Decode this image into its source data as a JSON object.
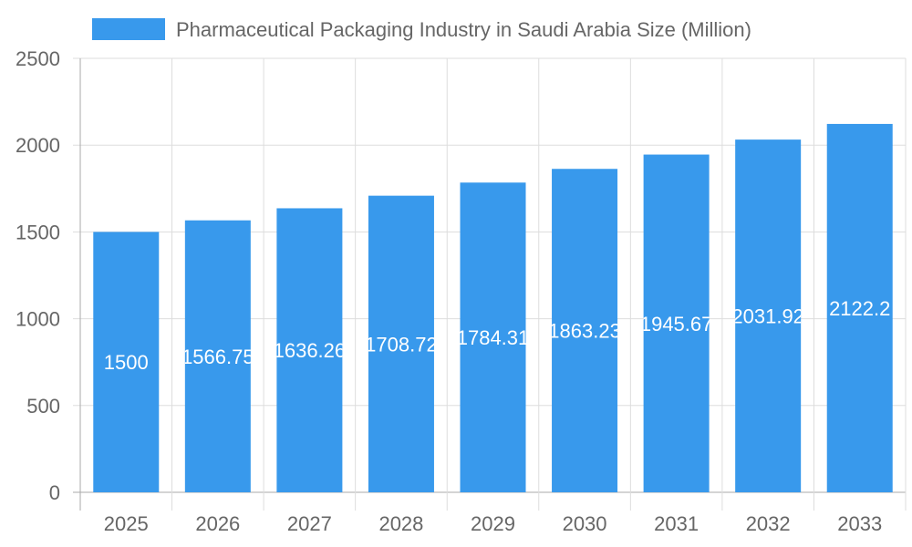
{
  "chart_data": {
    "type": "bar",
    "categories": [
      "2025",
      "2026",
      "2027",
      "2028",
      "2029",
      "2030",
      "2031",
      "2032",
      "2033"
    ],
    "series": [
      {
        "name": "Pharmaceutical Packaging Industry in Saudi Arabia Size (Million)",
        "values": [
          1500,
          1566.75,
          1636.26,
          1708.72,
          1784.31,
          1863.23,
          1945.67,
          2031.92,
          2122.2
        ]
      }
    ],
    "ylim": [
      0,
      2500
    ],
    "yticks": [
      "0",
      "500",
      "1000",
      "1500",
      "2000",
      "2500"
    ],
    "grid": true,
    "legend": "top",
    "colors": {
      "bar": "#3899ec",
      "grid": "#dddddd",
      "axis": "#aaaaaa",
      "text": "#666666",
      "label": "#ffffff"
    }
  }
}
